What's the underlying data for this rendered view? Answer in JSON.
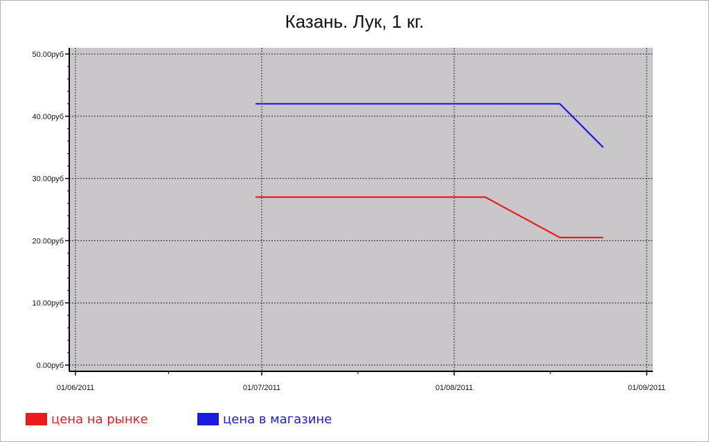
{
  "chart_data": {
    "type": "line",
    "title": "Казань. Лук, 1 кг.",
    "xlabel": "",
    "ylabel": "",
    "x_ticks": [
      "01/06/2011",
      "01/07/2011",
      "01/08/2011",
      "01/09/2011"
    ],
    "x_range": [
      "2011-06-01",
      "2011-09-01"
    ],
    "y_ticks": [
      "0.00руб",
      "10.00руб",
      "20.00руб",
      "30.00руб",
      "40.00руб",
      "50.00руб"
    ],
    "ylim": [
      0,
      50
    ],
    "grid": true,
    "legend_position": "bottom-left",
    "background": "#c9c7ca",
    "series": [
      {
        "name": "цена на рынке",
        "color": "#e81c1c",
        "x": [
          "2011-06-30",
          "2011-07-14",
          "2011-07-28",
          "2011-08-06",
          "2011-08-18",
          "2011-08-25"
        ],
        "y": [
          27.0,
          27.0,
          27.0,
          27.0,
          20.5,
          20.5
        ]
      },
      {
        "name": "цена в магазине",
        "color": "#1a1ae0",
        "x": [
          "2011-06-30",
          "2011-07-14",
          "2011-07-28",
          "2011-08-06",
          "2011-08-18",
          "2011-08-25"
        ],
        "y": [
          42.0,
          42.0,
          42.0,
          42.0,
          42.0,
          35.0
        ]
      }
    ]
  }
}
